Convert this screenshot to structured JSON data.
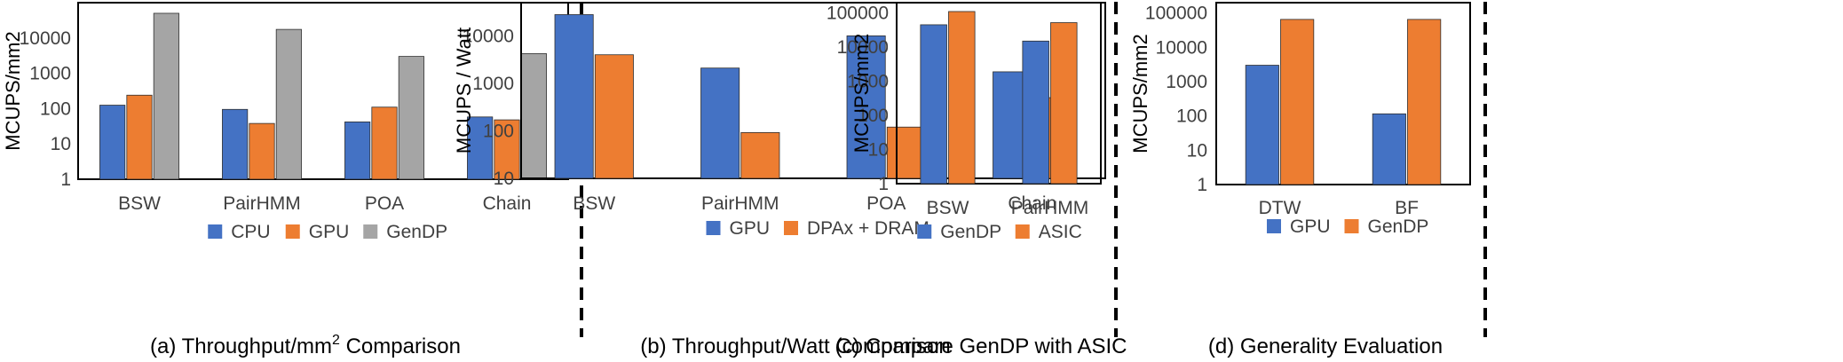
{
  "chart_data": [
    {
      "type": "bar",
      "scale": "log",
      "ylabel": "MCUPS/mm2",
      "ylim": [
        1,
        100000
      ],
      "ticks": [
        "1",
        "10",
        "100",
        "1000",
        "10000"
      ],
      "categories": [
        "BSW",
        "PairHMM",
        "POA",
        "Chain"
      ],
      "series": [
        {
          "name": "CPU",
          "color": "#4472C4",
          "values": [
            125,
            95,
            42,
            58
          ]
        },
        {
          "name": "GPU",
          "color": "#ED7D31",
          "values": [
            240,
            38,
            110,
            48
          ]
        },
        {
          "name": "GenDP",
          "color": "#A5A5A5",
          "values": [
            50000,
            17500,
            3000,
            3600
          ]
        }
      ],
      "caption_pre": "(a) Throughput/mm",
      "caption_sup": "2",
      "caption_post": " Comparison",
      "legend": "bottom"
    },
    {
      "type": "bar",
      "scale": "log",
      "ylabel": "MCUPS / Watt",
      "ylim": [
        10,
        50000
      ],
      "ticks": [
        "10",
        "100",
        "1000",
        "10000"
      ],
      "categories": [
        "BSW",
        "PairHMM",
        "POA",
        "Chain"
      ],
      "series": [
        {
          "name": "GPU",
          "color": "#4472C4",
          "values": [
            28000,
            2100,
            10000,
            1750
          ]
        },
        {
          "name": "DPAx + DRAM",
          "color": "#ED7D31",
          "values": [
            4000,
            92,
            120,
            500
          ]
        }
      ],
      "caption": "(b) Throughput/Watt Comparison",
      "legend": "bottom"
    },
    {
      "type": "bar",
      "scale": "log",
      "ylabel": "MCUPS/mm2",
      "ylim": [
        1,
        200000
      ],
      "ticks": [
        "1",
        "10",
        "100",
        "1000",
        "10000",
        "100000"
      ],
      "categories": [
        "BSW",
        "PairHMM"
      ],
      "series": [
        {
          "name": "GenDP",
          "color": "#4472C4",
          "values": [
            45000,
            15000
          ]
        },
        {
          "name": "ASIC",
          "color": "#ED7D31",
          "values": [
            110000,
            52000
          ]
        }
      ],
      "caption": "(c) Compare GenDP with ASIC",
      "legend": "bottom"
    },
    {
      "type": "bar",
      "scale": "log",
      "ylabel": "MCUPS/mm2",
      "ylim": [
        1,
        200000
      ],
      "ticks": [
        "1",
        "10",
        "100",
        "1000",
        "10000",
        "100000"
      ],
      "categories": [
        "DTW",
        "BF"
      ],
      "series": [
        {
          "name": "GPU",
          "color": "#4472C4",
          "values": [
            3000,
            115
          ]
        },
        {
          "name": "GenDP",
          "color": "#ED7D31",
          "values": [
            65000,
            65000
          ]
        }
      ],
      "caption": "(d) Generality Evaluation",
      "legend": "bottom"
    }
  ]
}
